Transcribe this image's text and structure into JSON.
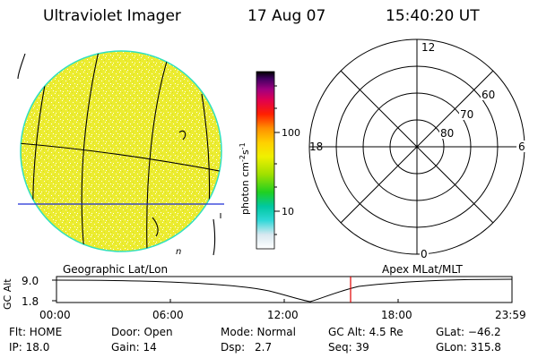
{
  "header": {
    "instrument": "Ultraviolet Imager",
    "date": "17 Aug 07",
    "time": "15:40:20 UT"
  },
  "colorbar": {
    "unit_prefix": "photon cm",
    "unit_exp1": "-2",
    "unit_mid": "s",
    "unit_exp2": "-1",
    "tick_labels": [
      "100",
      "10"
    ]
  },
  "polar_plot": {
    "mlt_labels": {
      "top": "12",
      "bottom": "0",
      "left": "18",
      "right": "6"
    },
    "lat_labels": [
      "60",
      "70",
      "80"
    ]
  },
  "globe": {
    "fill_color": "#ecec30",
    "edge_color": "#30e0c0",
    "mark": "n"
  },
  "timeline": {
    "left_label": "Geographic Lat/Lon",
    "right_label": "Apex MLat/MLT",
    "y_axis_label": "GC Alt",
    "y_ticks": [
      "9.0",
      "1.8"
    ],
    "x_ticks": [
      "00:00",
      "06:00",
      "12:00",
      "18:00",
      "23:59"
    ],
    "marker_color": "#e00000"
  },
  "info": {
    "row1": {
      "filter": "Flt: HOME",
      "door": "Door: Open",
      "mode": "Mode: Normal",
      "gc_alt": "GC Alt: 4.5 Re",
      "glat": "GLat: −46.2"
    },
    "row2": {
      "ip": "IP: 18.0",
      "gain": "Gain: 14",
      "dsp_label": "Dsp:",
      "dsp_value": "2.7",
      "seq": "Seq: 39",
      "glon": "GLon: 315.8"
    }
  }
}
